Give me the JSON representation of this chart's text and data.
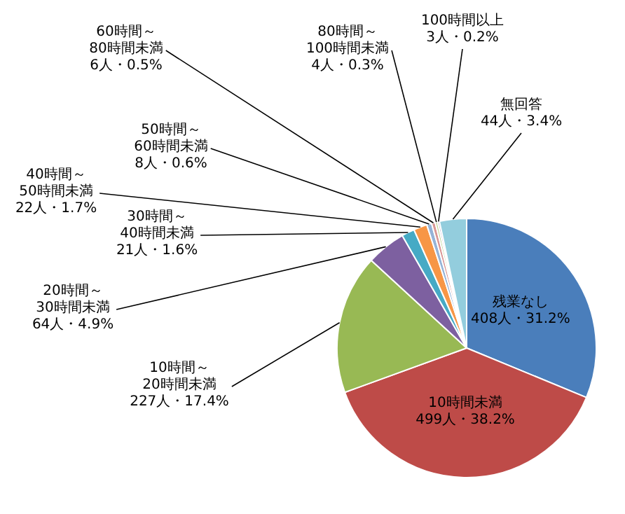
{
  "chart_data": {
    "type": "pie",
    "categories": [
      "残業なし",
      "10時間未満",
      "10時間～20時間未満",
      "20時間～30時間未満",
      "30時間～40時間未満",
      "40時間～50時間未満",
      "50時間～60時間未満",
      "60時間～80時間未満",
      "80時間～100時間未満",
      "100時間以上",
      "無回答"
    ],
    "values": [
      408,
      499,
      227,
      64,
      21,
      22,
      8,
      6,
      4,
      3,
      44
    ],
    "value_labels": [
      "408人・31.2%",
      "499人・38.2%",
      "227人・17.4%",
      "64人・4.9%",
      "21人・1.6%",
      "22人・1.7%",
      "8人・0.6%",
      "6人・0.5%",
      "4人・0.3%",
      "3人・0.2%",
      "44人・3.4%"
    ],
    "colors": [
      "#4a7ebb",
      "#be4b48",
      "#98b954",
      "#7d60a0",
      "#46aac5",
      "#f79646",
      "#95b3d7",
      "#d99694",
      "#c3d69b",
      "#b3a2c7",
      "#93cddd"
    ],
    "legend": false
  }
}
